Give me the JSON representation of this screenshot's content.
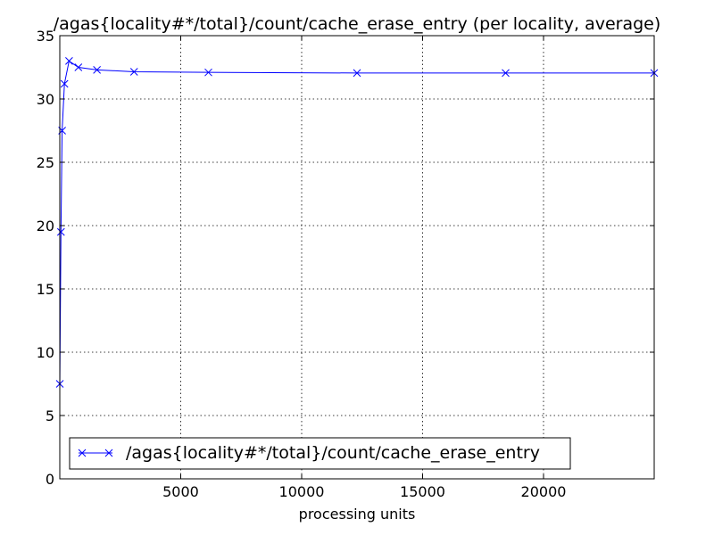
{
  "chart_data": {
    "type": "line",
    "title": "/agas{locality#*/total}/count/cache_erase_entry (per locality, average)",
    "xlabel": "processing units",
    "ylabel": "",
    "xlim": [
      0,
      24576
    ],
    "ylim": [
      0,
      35
    ],
    "xticks": [
      5000,
      10000,
      15000,
      20000
    ],
    "yticks": [
      0,
      5,
      10,
      15,
      20,
      25,
      30,
      35
    ],
    "grid": true,
    "legend_position": "lower-left",
    "series": [
      {
        "name": "/agas{locality#*/total}/count/cache_erase_entry",
        "color": "#0000ff",
        "marker": "x",
        "x": [
          1,
          48,
          96,
          192,
          384,
          768,
          1536,
          3072,
          6144,
          12288,
          18432,
          24576
        ],
        "y": [
          7.5,
          19.5,
          27.5,
          31.2,
          33.0,
          32.5,
          32.3,
          32.15,
          32.1,
          32.05,
          32.05,
          32.05
        ]
      }
    ]
  }
}
